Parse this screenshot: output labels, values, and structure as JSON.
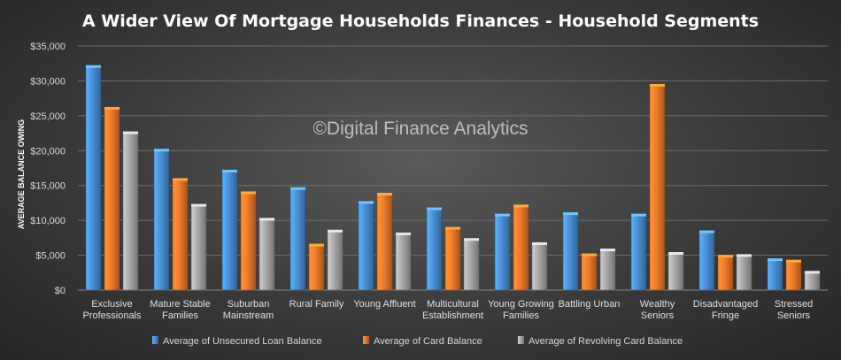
{
  "chart_data": {
    "type": "bar",
    "title": "A Wider View Of Mortgage Households Finances - Household Segments",
    "ylabel": "AVERAGE BALANCE OWING",
    "xlabel": "",
    "watermark": "©Digital Finance Analytics",
    "ylim": [
      0,
      35000
    ],
    "yticks": [
      {
        "value": 0,
        "label": "$0"
      },
      {
        "value": 5000,
        "label": "$5,000"
      },
      {
        "value": 10000,
        "label": "$10,000"
      },
      {
        "value": 15000,
        "label": "$15,000"
      },
      {
        "value": 20000,
        "label": "$20,000"
      },
      {
        "value": 25000,
        "label": "$25,000"
      },
      {
        "value": 30000,
        "label": "$30,000"
      },
      {
        "value": 35000,
        "label": "$35,000"
      }
    ],
    "grid": true,
    "legend_position": "bottom",
    "categories": [
      [
        "Exclusive",
        "Professionals"
      ],
      [
        "Mature Stable",
        "Families"
      ],
      [
        "Suburban",
        "Mainstream"
      ],
      [
        "Rural Family"
      ],
      [
        "Young Affluent"
      ],
      [
        "Multicultural",
        "Establishment"
      ],
      [
        "Young Growing",
        "Families"
      ],
      [
        "Battling Urban"
      ],
      [
        "Wealthy",
        "Seniors"
      ],
      [
        "Disadvantaged",
        "Fringe"
      ],
      [
        "Stressed",
        "Seniors"
      ]
    ],
    "series": [
      {
        "name": "Average of Unsecured Loan Balance",
        "color": "#4a8fd6",
        "values": [
          32000,
          20000,
          17000,
          14500,
          12500,
          11600,
          10700,
          10900,
          10700,
          8300,
          4300
        ]
      },
      {
        "name": "Average of Card Balance",
        "color": "#f0792a",
        "values": [
          26000,
          15800,
          13900,
          6400,
          13700,
          8800,
          12000,
          5000,
          29300,
          4800,
          4100
        ]
      },
      {
        "name": "Average of Revolving Card Balance",
        "color": "#a6a6a6",
        "values": [
          22500,
          12100,
          10100,
          8400,
          8000,
          7200,
          6600,
          5700,
          5200,
          4900,
          2500
        ]
      }
    ]
  }
}
